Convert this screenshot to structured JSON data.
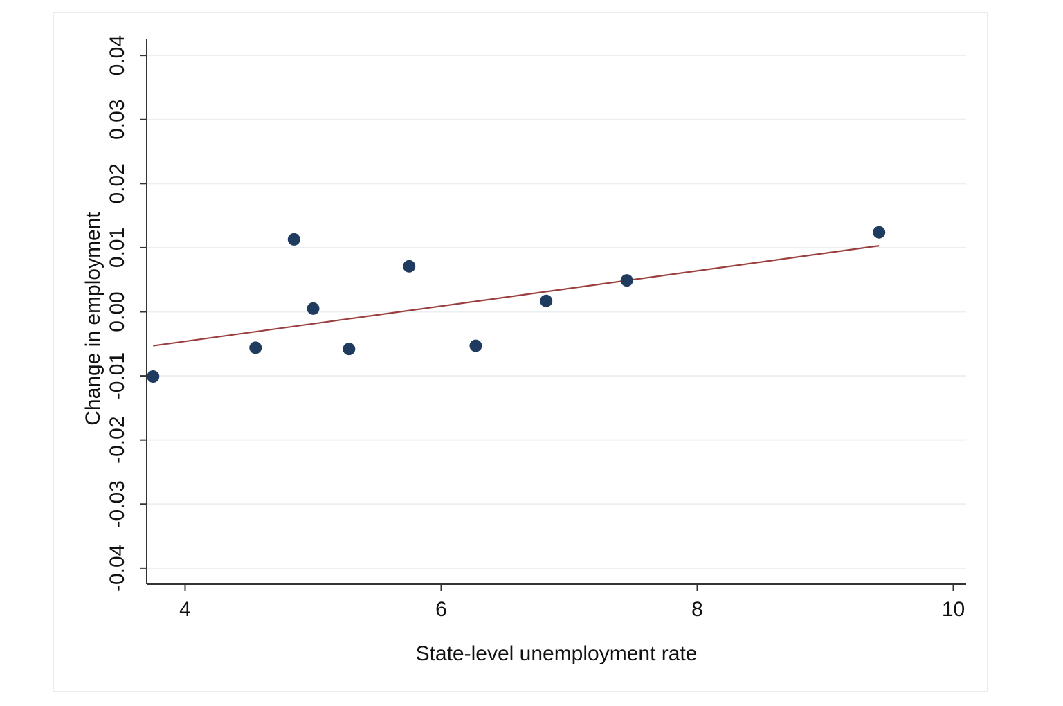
{
  "chart_data": {
    "type": "scatter",
    "xlabel": "State-level unemployment rate",
    "ylabel": "Change in employment",
    "xlim": [
      3.7,
      10.1
    ],
    "ylim": [
      -0.0425,
      0.0425
    ],
    "x_ticks": [
      4,
      6,
      8,
      10
    ],
    "x_tick_labels": [
      "4",
      "6",
      "8",
      "10"
    ],
    "y_ticks": [
      -0.04,
      -0.03,
      -0.02,
      -0.01,
      0.0,
      0.01,
      0.02,
      0.03,
      0.04
    ],
    "y_tick_labels": [
      "-0.04",
      "-0.03",
      "-0.02",
      "-0.01",
      "0.00",
      "0.01",
      "0.02",
      "0.03",
      "0.04"
    ],
    "grid": true,
    "series": [
      {
        "kind": "points",
        "color": "#1f3b5f",
        "points": [
          {
            "x": 3.75,
            "y": -0.0101
          },
          {
            "x": 4.55,
            "y": -0.0056
          },
          {
            "x": 4.85,
            "y": 0.0113
          },
          {
            "x": 5.0,
            "y": 0.0005
          },
          {
            "x": 5.28,
            "y": -0.0058
          },
          {
            "x": 5.75,
            "y": 0.0071
          },
          {
            "x": 6.27,
            "y": -0.0053
          },
          {
            "x": 6.82,
            "y": 0.0017
          },
          {
            "x": 7.45,
            "y": 0.0049
          },
          {
            "x": 9.42,
            "y": 0.0124
          }
        ]
      },
      {
        "kind": "fit-line",
        "color": "#9b3e3e",
        "points": [
          {
            "x": 3.75,
            "y": -0.0053
          },
          {
            "x": 9.42,
            "y": 0.0103
          }
        ]
      }
    ]
  }
}
